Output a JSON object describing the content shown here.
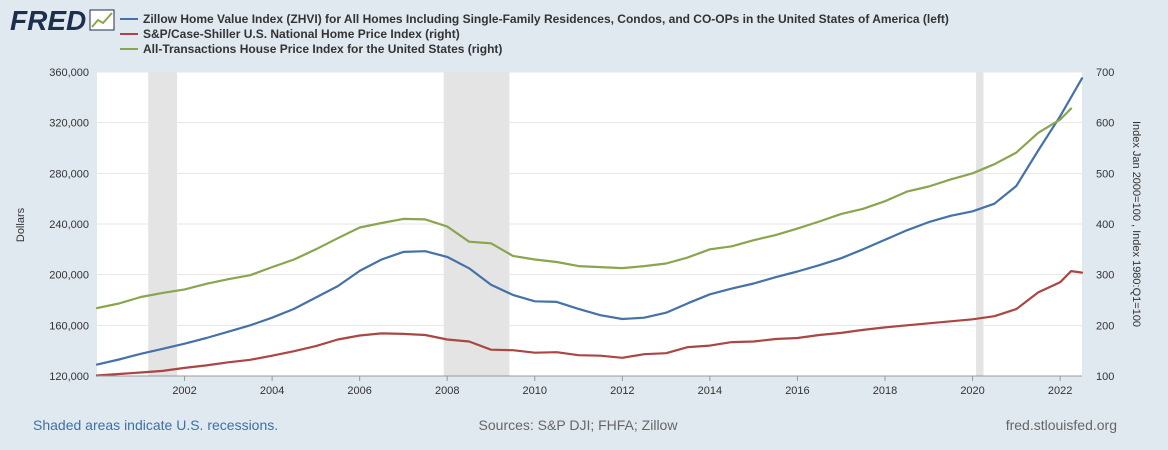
{
  "brand": {
    "logo_text": "FRED",
    "logo_color": "#1d2f4f",
    "logo_accent": "#8fa64a"
  },
  "legend": [
    {
      "label": "Zillow Home Value Index (ZHVI) for All Homes Including Single-Family Residences, Condos, and CO-OPs in the United States of America (left)",
      "color": "#4572a7"
    },
    {
      "label": "S&P/Case-Shiller U.S. National Home Price Index (right)",
      "color": "#aa4643"
    },
    {
      "label": "All-Transactions House Price Index for the United States (right)",
      "color": "#89a54e"
    }
  ],
  "footer": {
    "left": "Shaded areas indicate U.S. recessions.",
    "center": "Sources: S&P DJI; FHFA; Zillow",
    "right": "fred.stlouisfed.org",
    "left_color": "#3f6fa5",
    "muted_color": "#666666"
  },
  "chart_data": {
    "type": "line",
    "title": "",
    "xlabel": "",
    "ylabel_left": "Dollars",
    "ylabel_right": "Index Jan 2000=100 , Index 1980:Q1=100",
    "xlim": [
      2000.0,
      2022.5
    ],
    "ylim_left": [
      120000,
      360000
    ],
    "ylim_right": [
      100,
      700
    ],
    "x_ticks": [
      2002,
      2004,
      2006,
      2008,
      2010,
      2012,
      2014,
      2016,
      2018,
      2020,
      2022
    ],
    "x_tick_labels": [
      "2002",
      "2004",
      "2006",
      "2008",
      "2010",
      "2012",
      "2014",
      "2016",
      "2018",
      "2020",
      "2022"
    ],
    "y_left_ticks": [
      120000,
      160000,
      200000,
      240000,
      280000,
      320000,
      360000
    ],
    "y_left_tick_labels": [
      "120,000",
      "160,000",
      "200,000",
      "240,000",
      "280,000",
      "320,000",
      "360,000"
    ],
    "y_right_ticks": [
      100,
      200,
      300,
      400,
      500,
      600,
      700
    ],
    "y_right_tick_labels": [
      "100",
      "200",
      "300",
      "400",
      "500",
      "600",
      "700"
    ],
    "grid": true,
    "recessions": [
      [
        2001.17,
        2001.83
      ],
      [
        2007.92,
        2009.42
      ],
      [
        2020.08,
        2020.25
      ]
    ],
    "series": [
      {
        "name": "Zillow Home Value Index (ZHVI) for All Homes Including Single-Family Residences, Condos, and CO-OPs in the United States of America (left)",
        "axis": "left",
        "color": "#4572a7",
        "x": [
          2000.0,
          2000.5,
          2001.0,
          2001.5,
          2002.0,
          2002.5,
          2003.0,
          2003.5,
          2004.0,
          2004.5,
          2005.0,
          2005.5,
          2006.0,
          2006.5,
          2007.0,
          2007.5,
          2008.0,
          2008.5,
          2009.0,
          2009.5,
          2010.0,
          2010.5,
          2011.0,
          2011.5,
          2012.0,
          2012.5,
          2013.0,
          2013.5,
          2014.0,
          2014.5,
          2015.0,
          2015.5,
          2016.0,
          2016.5,
          2017.0,
          2017.5,
          2018.0,
          2018.5,
          2019.0,
          2019.5,
          2020.0,
          2020.5,
          2021.0,
          2021.5,
          2022.0,
          2022.5
        ],
        "values": [
          129000,
          133000,
          137500,
          141500,
          145500,
          150000,
          155000,
          160000,
          166000,
          173000,
          182000,
          191000,
          203000,
          212000,
          218000,
          218500,
          214000,
          205000,
          192000,
          184000,
          179000,
          178500,
          173000,
          168000,
          165000,
          166000,
          170000,
          177500,
          184500,
          189000,
          193000,
          198000,
          202500,
          207500,
          213000,
          220000,
          227500,
          235000,
          241500,
          246500,
          250000,
          256000,
          270000,
          298000,
          325000,
          355000
        ]
      },
      {
        "name": "S&P/Case-Shiller U.S. National Home Price Index (right)",
        "axis": "right",
        "color": "#aa4643",
        "x": [
          2000.0,
          2000.5,
          2001.0,
          2001.5,
          2002.0,
          2002.5,
          2003.0,
          2003.5,
          2004.0,
          2004.5,
          2005.0,
          2005.5,
          2006.0,
          2006.5,
          2007.0,
          2007.5,
          2008.0,
          2008.5,
          2009.0,
          2009.5,
          2010.0,
          2010.5,
          2011.0,
          2011.5,
          2012.0,
          2012.5,
          2013.0,
          2013.5,
          2014.0,
          2014.5,
          2015.0,
          2015.5,
          2016.0,
          2016.5,
          2017.0,
          2017.5,
          2018.0,
          2018.5,
          2019.0,
          2019.5,
          2020.0,
          2020.5,
          2021.0,
          2021.5,
          2022.0,
          2022.25,
          2022.5
        ],
        "values": [
          101,
          104,
          107,
          110,
          116,
          121,
          127,
          132,
          140,
          149,
          159,
          172,
          180,
          184,
          183,
          181,
          172,
          168,
          152,
          151,
          146,
          147,
          141,
          140,
          136,
          143,
          145,
          157,
          160,
          167,
          168,
          173,
          175,
          181,
          185,
          191,
          196,
          200,
          204,
          208,
          212,
          218,
          232,
          265,
          285,
          307,
          304
        ]
      },
      {
        "name": "All-Transactions House Price Index for the United States (right)",
        "axis": "right",
        "color": "#89a54e",
        "x": [
          2000.0,
          2000.5,
          2001.0,
          2001.5,
          2002.0,
          2002.5,
          2003.0,
          2003.5,
          2004.0,
          2004.5,
          2005.0,
          2005.5,
          2006.0,
          2006.5,
          2007.0,
          2007.5,
          2008.0,
          2008.5,
          2009.0,
          2009.5,
          2010.0,
          2010.5,
          2011.0,
          2011.5,
          2012.0,
          2012.5,
          2013.0,
          2013.5,
          2014.0,
          2014.5,
          2015.0,
          2015.5,
          2016.0,
          2016.5,
          2017.0,
          2017.5,
          2018.0,
          2018.5,
          2019.0,
          2019.5,
          2020.0,
          2020.5,
          2021.0,
          2021.5,
          2022.0,
          2022.25
        ],
        "values": [
          234,
          243,
          256,
          264,
          271,
          282,
          291,
          299,
          315,
          330,
          350,
          372,
          393,
          402,
          410,
          409,
          395,
          365,
          362,
          337,
          330,
          325,
          317,
          315,
          313,
          317,
          322,
          334,
          350,
          356,
          368,
          378,
          391,
          405,
          420,
          430,
          445,
          464,
          474,
          488,
          500,
          518,
          541,
          580,
          606,
          628
        ]
      }
    ]
  }
}
